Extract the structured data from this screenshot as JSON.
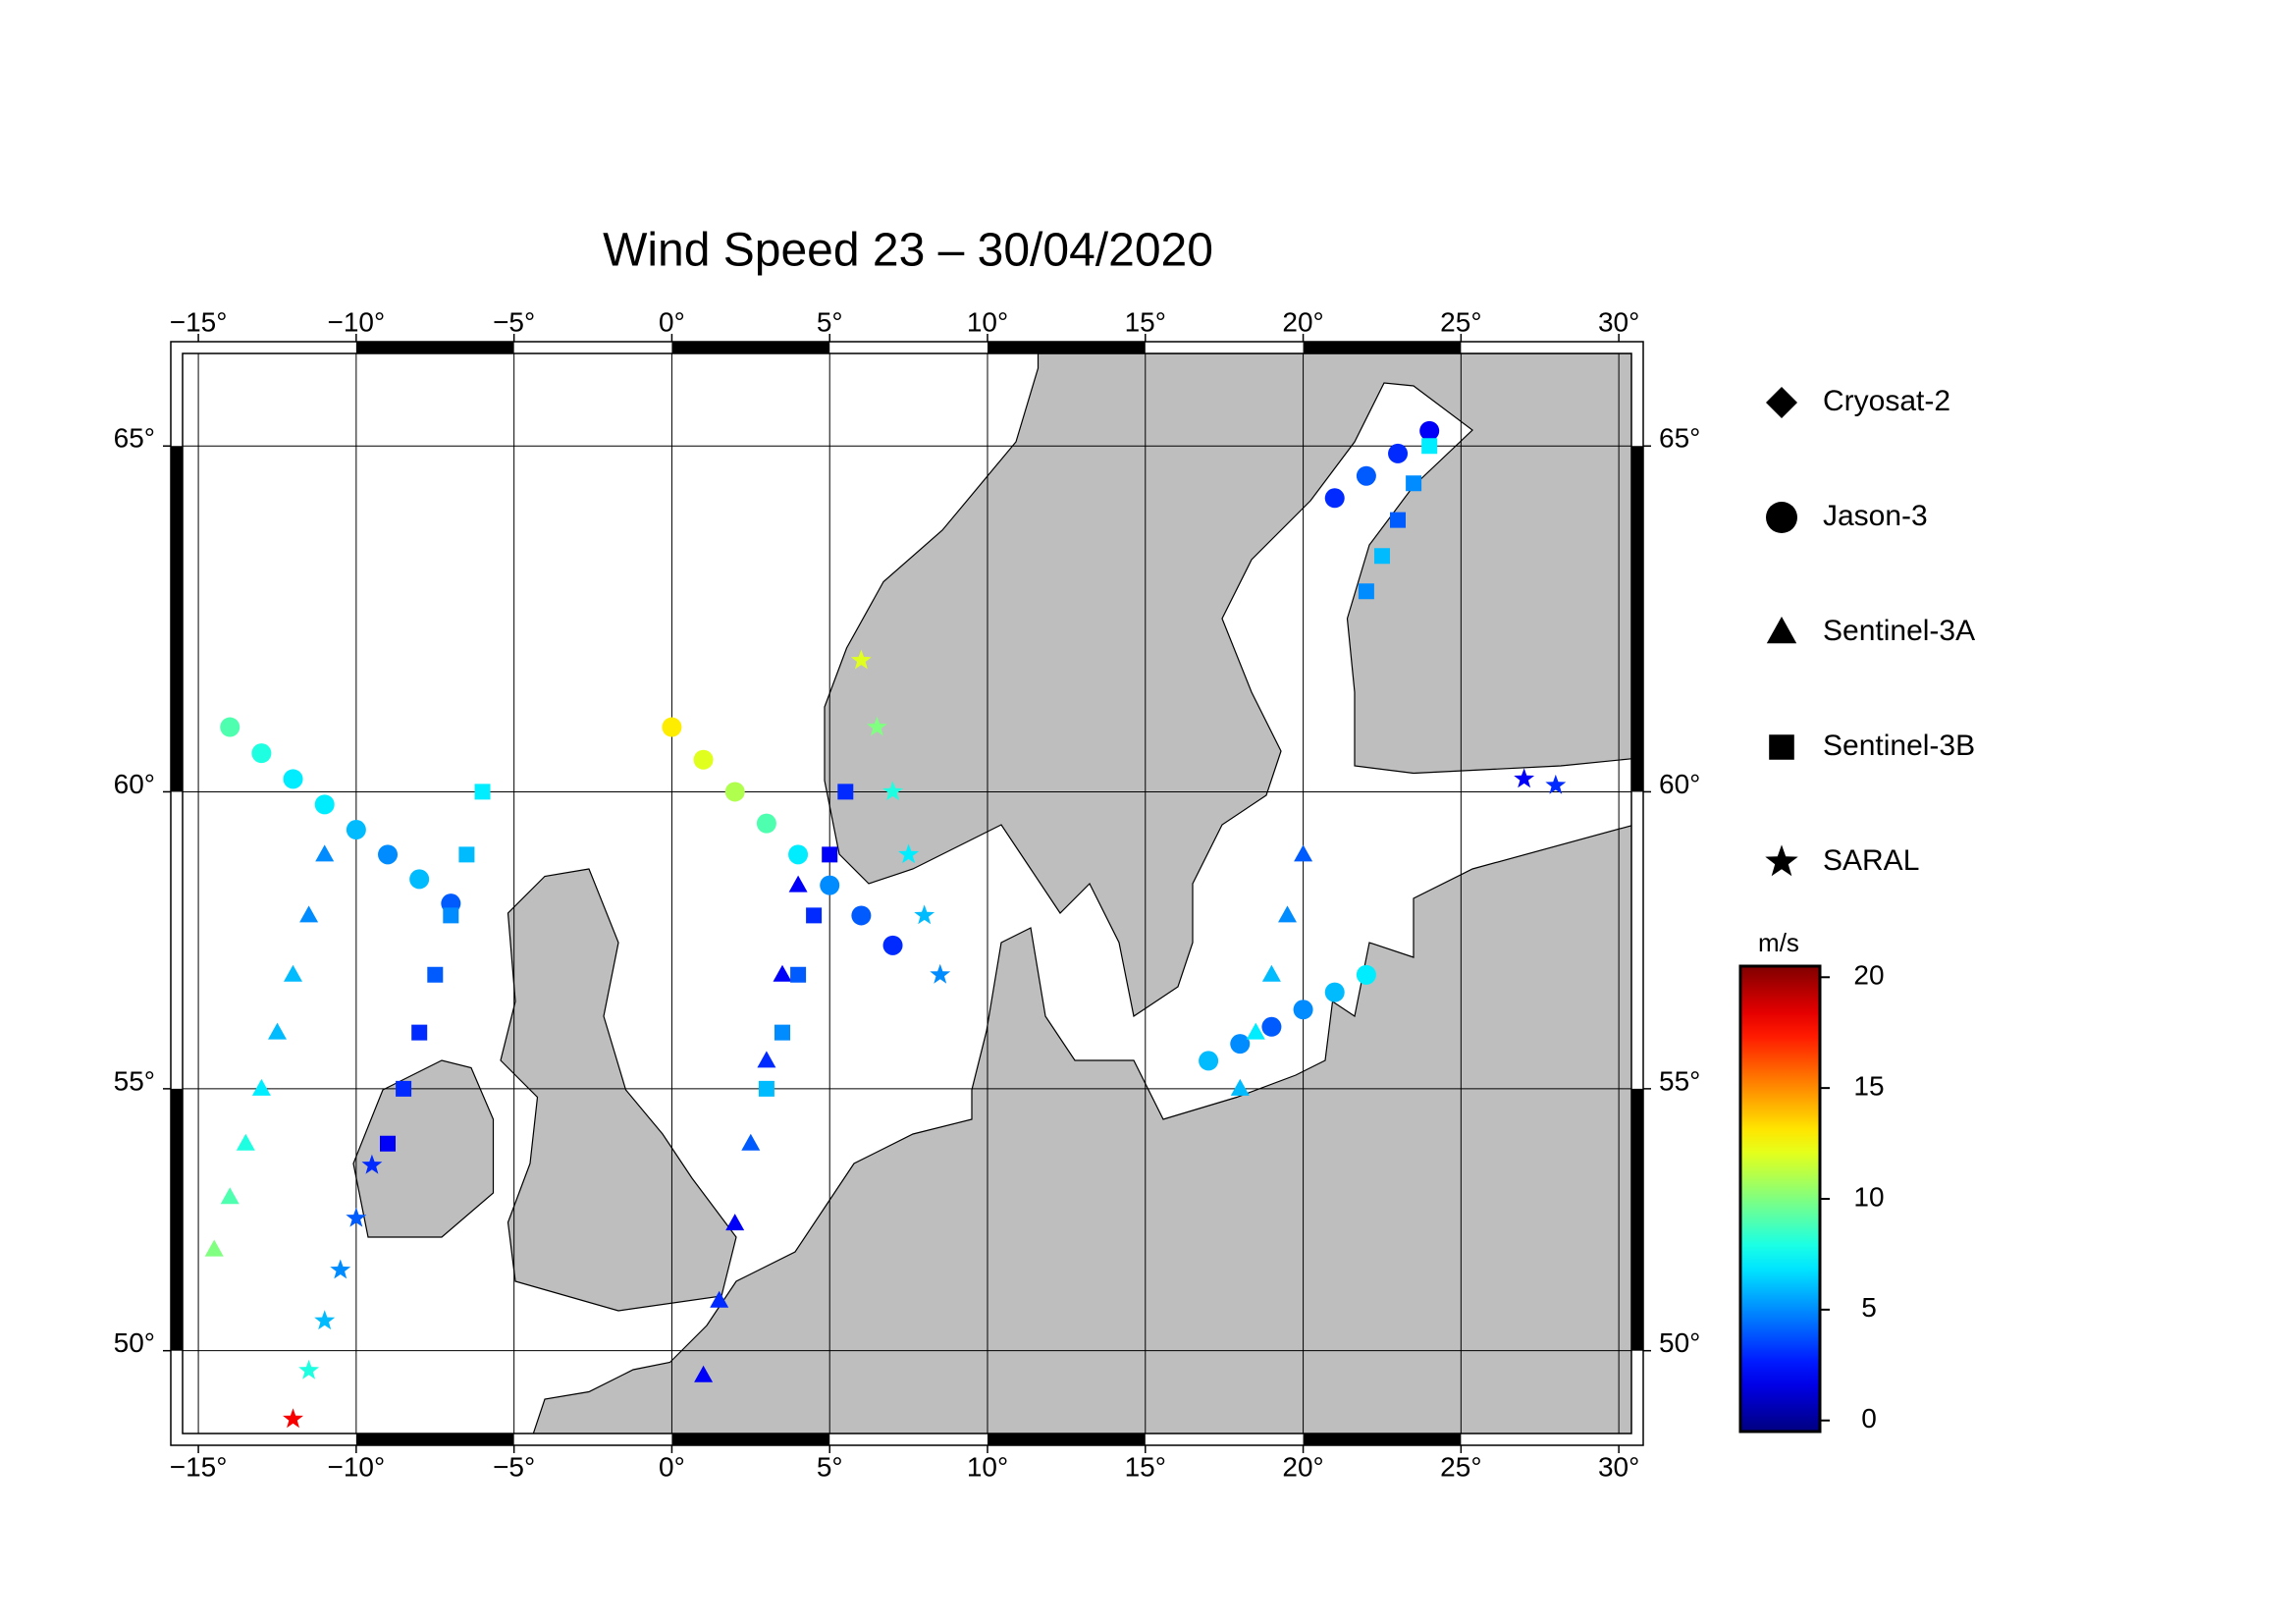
{
  "chart_data": {
    "type": "scatter",
    "title": "Wind Speed 23 – 30/04/2020",
    "projection": "mercator",
    "xlim": [
      -15.5,
      30.4
    ],
    "ylim": [
      48.3,
      66.2
    ],
    "xticks": [
      {
        "value": -15,
        "label": "−15°"
      },
      {
        "value": -10,
        "label": "−10°"
      },
      {
        "value": -5,
        "label": "−5°"
      },
      {
        "value": 0,
        "label": "0°"
      },
      {
        "value": 5,
        "label": "5°"
      },
      {
        "value": 10,
        "label": "10°"
      },
      {
        "value": 15,
        "label": "15°"
      },
      {
        "value": 20,
        "label": "20°"
      },
      {
        "value": 25,
        "label": "25°"
      },
      {
        "value": 30,
        "label": "30°"
      }
    ],
    "yticks": [
      {
        "value": 50,
        "label": "50°"
      },
      {
        "value": 55,
        "label": "55°"
      },
      {
        "value": 60,
        "label": "60°"
      },
      {
        "value": 65,
        "label": "65°"
      }
    ],
    "grid": true,
    "colorbar": {
      "label": "m/s",
      "lim": [
        -0.5,
        20.5
      ],
      "ticks": [
        0,
        5,
        10,
        15,
        20
      ],
      "colormap": "jet"
    },
    "series": [
      {
        "name": "Cryosat-2",
        "marker": "diamond",
        "x": [],
        "y": [],
        "values": []
      },
      {
        "name": "Jason-3",
        "marker": "circle",
        "x": [
          -14,
          -13,
          -12,
          -11,
          -10,
          -9,
          -8,
          -7,
          0,
          1,
          2,
          3,
          4,
          5,
          6,
          7,
          17,
          18,
          19,
          20,
          21,
          22,
          21,
          22,
          23,
          24
        ],
        "y": [
          61,
          60.6,
          60.2,
          59.8,
          59.4,
          59,
          58.6,
          58.2,
          61,
          60.5,
          60,
          59.5,
          59,
          58.5,
          58,
          57.5,
          55.5,
          55.8,
          56.1,
          56.4,
          56.7,
          57,
          64.3,
          64.6,
          64.9,
          65.2
        ],
        "values": [
          9,
          8,
          7,
          7,
          6,
          5,
          6,
          4,
          13,
          12,
          11,
          9,
          7,
          5,
          4,
          3,
          6,
          5,
          4,
          5,
          6,
          7,
          3,
          4,
          3,
          2
        ]
      },
      {
        "name": "Sentinel-3A",
        "marker": "triangle",
        "x": [
          -14.5,
          -14,
          -13.5,
          -13,
          -12.5,
          -12,
          -11.5,
          -11,
          1,
          1.5,
          2,
          2.5,
          3,
          3.5,
          4,
          18,
          18.5,
          19,
          19.5,
          20
        ],
        "y": [
          52,
          53,
          54,
          55,
          56,
          57,
          58,
          59,
          49.5,
          51,
          52.5,
          54,
          55.5,
          57,
          58.5,
          55,
          56,
          57,
          58,
          59
        ],
        "values": [
          10,
          9,
          8,
          7,
          6,
          6,
          5,
          5,
          2,
          3,
          2,
          4,
          3,
          2,
          2,
          6,
          7,
          6,
          5,
          4
        ]
      },
      {
        "name": "Sentinel-3B",
        "marker": "square",
        "x": [
          -9,
          -8.5,
          -8,
          -7.5,
          -7,
          -6.5,
          -6,
          3,
          3.5,
          4,
          4.5,
          5,
          5.5,
          22,
          22.5,
          23,
          23.5,
          24
        ],
        "y": [
          54,
          55,
          56,
          57,
          58,
          59,
          60,
          55,
          56,
          57,
          58,
          59,
          60,
          63,
          63.5,
          64,
          64.5,
          65
        ],
        "values": [
          2,
          3,
          3,
          4,
          5,
          6,
          7,
          6,
          5,
          4,
          3,
          2,
          3,
          5,
          6,
          4,
          5,
          7
        ]
      },
      {
        "name": "SARAL",
        "marker": "star",
        "x": [
          -12,
          -11.5,
          -11,
          -10.5,
          -10,
          -9.5,
          6,
          6.5,
          7,
          7.5,
          8,
          8.5,
          27,
          28
        ],
        "y": [
          48.6,
          49.6,
          50.6,
          51.6,
          52.6,
          53.6,
          62,
          61,
          60,
          59,
          58,
          57,
          60.2,
          60.1
        ],
        "values": [
          18,
          8,
          6,
          5,
          4,
          3,
          12,
          10,
          8,
          7,
          6,
          5,
          2,
          3
        ]
      }
    ]
  }
}
